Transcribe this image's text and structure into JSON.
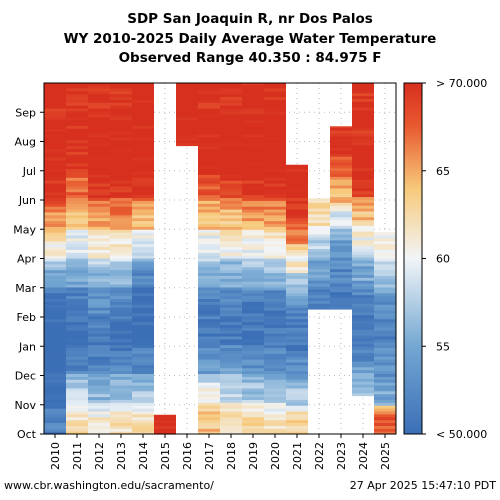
{
  "chart_data": {
    "type": "heatmap",
    "title_lines": [
      "SDP San Joaquin R, nr Dos Palos",
      "WY 2010-2025 Daily Average Water Temperature",
      "Observed Range 40.350 : 84.975 F"
    ],
    "x_categories": [
      "2010",
      "2011",
      "2012",
      "2013",
      "2014",
      "2015",
      "2016",
      "2017",
      "2018",
      "2019",
      "2020",
      "2021",
      "2022",
      "2023",
      "2024",
      "2025"
    ],
    "y_month_labels": [
      "Oct",
      "Nov",
      "Dec",
      "Jan",
      "Feb",
      "Mar",
      "Apr",
      "May",
      "Jun",
      "Jul",
      "Aug",
      "Sep"
    ],
    "colorbar": {
      "min": 50,
      "max": 70,
      "tick_labels": [
        "< 50.000",
        "55",
        "60",
        "65",
        "> 70.000"
      ],
      "tick_values": [
        50,
        55,
        60,
        65,
        70
      ],
      "colors": [
        "#3b6fb6",
        "#74a7d2",
        "#f2f5f8",
        "#f7c97a",
        "#e8582f",
        "#d7301f"
      ]
    },
    "grid": "dotted",
    "series": [
      {
        "x": "2010",
        "coverage_days": [
          0,
          365
        ],
        "monthly_mean_temp_f": [
          52,
          50,
          49,
          49,
          50,
          55,
          61,
          66,
          70,
          71,
          71,
          70
        ]
      },
      {
        "x": "2011",
        "coverage_days": [
          0,
          365
        ],
        "monthly_mean_temp_f": [
          62,
          58,
          52,
          50,
          51,
          55,
          59,
          63,
          67,
          70,
          70,
          70
        ]
      },
      {
        "x": "2012",
        "coverage_days": [
          0,
          365
        ],
        "monthly_mean_temp_f": [
          61,
          56,
          52,
          51,
          53,
          56,
          61,
          65,
          70,
          71,
          71,
          70
        ]
      },
      {
        "x": "2013",
        "coverage_days": [
          0,
          365
        ],
        "monthly_mean_temp_f": [
          62,
          57,
          52,
          50,
          52,
          56,
          61,
          66,
          70,
          71,
          71,
          70
        ]
      },
      {
        "x": "2014",
        "coverage_days": [
          0,
          365
        ],
        "monthly_mean_temp_f": [
          62,
          57,
          52,
          50,
          50,
          52,
          59,
          64,
          70,
          71,
          71,
          71
        ]
      },
      {
        "x": "2015",
        "coverage_days": [
          0,
          20
        ],
        "monthly_mean_temp_f": [
          70
        ]
      },
      {
        "x": "2016",
        "coverage_days": [
          300,
          365
        ],
        "monthly_mean_temp_f": [
          71,
          71
        ]
      },
      {
        "x": "2017",
        "coverage_days": [
          0,
          365
        ],
        "monthly_mean_temp_f": [
          64,
          60,
          54,
          51,
          51,
          56,
          59,
          64,
          68,
          71,
          71,
          70
        ]
      },
      {
        "x": "2018",
        "coverage_days": [
          0,
          365
        ],
        "monthly_mean_temp_f": [
          62,
          58,
          54,
          51,
          52,
          55,
          60,
          64,
          69,
          71,
          71,
          70
        ]
      },
      {
        "x": "2019",
        "coverage_days": [
          0,
          365
        ],
        "monthly_mean_temp_f": [
          63,
          57,
          53,
          51,
          51,
          56,
          60,
          65,
          70,
          71,
          71,
          70
        ]
      },
      {
        "x": "2020",
        "coverage_days": [
          0,
          365
        ],
        "monthly_mean_temp_f": [
          62,
          57,
          53,
          51,
          51,
          56,
          60,
          65,
          70,
          71,
          71,
          70
        ]
      },
      {
        "x": "2021",
        "coverage_days": [
          0,
          280
        ],
        "monthly_mean_temp_f": [
          63,
          57,
          53,
          51,
          52,
          56,
          61,
          66,
          70,
          71
        ]
      },
      {
        "x": "2022",
        "coverage_days": [
          130,
          245
        ],
        "monthly_mean_temp_f": [
          52,
          54,
          58,
          62
        ]
      },
      {
        "x": "2023",
        "coverage_days": [
          130,
          320
        ],
        "monthly_mean_temp_f": [
          51,
          52,
          54,
          59,
          64,
          68,
          70
        ]
      },
      {
        "x": "2024",
        "coverage_days": [
          40,
          365
        ],
        "monthly_mean_temp_f": [
          56,
          52,
          51,
          52,
          55,
          60,
          64,
          70,
          71,
          70,
          70
        ]
      },
      {
        "x": "2025",
        "coverage_days": [
          0,
          210
        ],
        "monthly_mean_temp_f": [
          68,
          55,
          53,
          52,
          53,
          57,
          60
        ]
      }
    ]
  },
  "footer": {
    "source_url": "www.cbr.washington.edu/sacramento/",
    "timestamp": "27 Apr 2025 15:47:10 PDT"
  }
}
